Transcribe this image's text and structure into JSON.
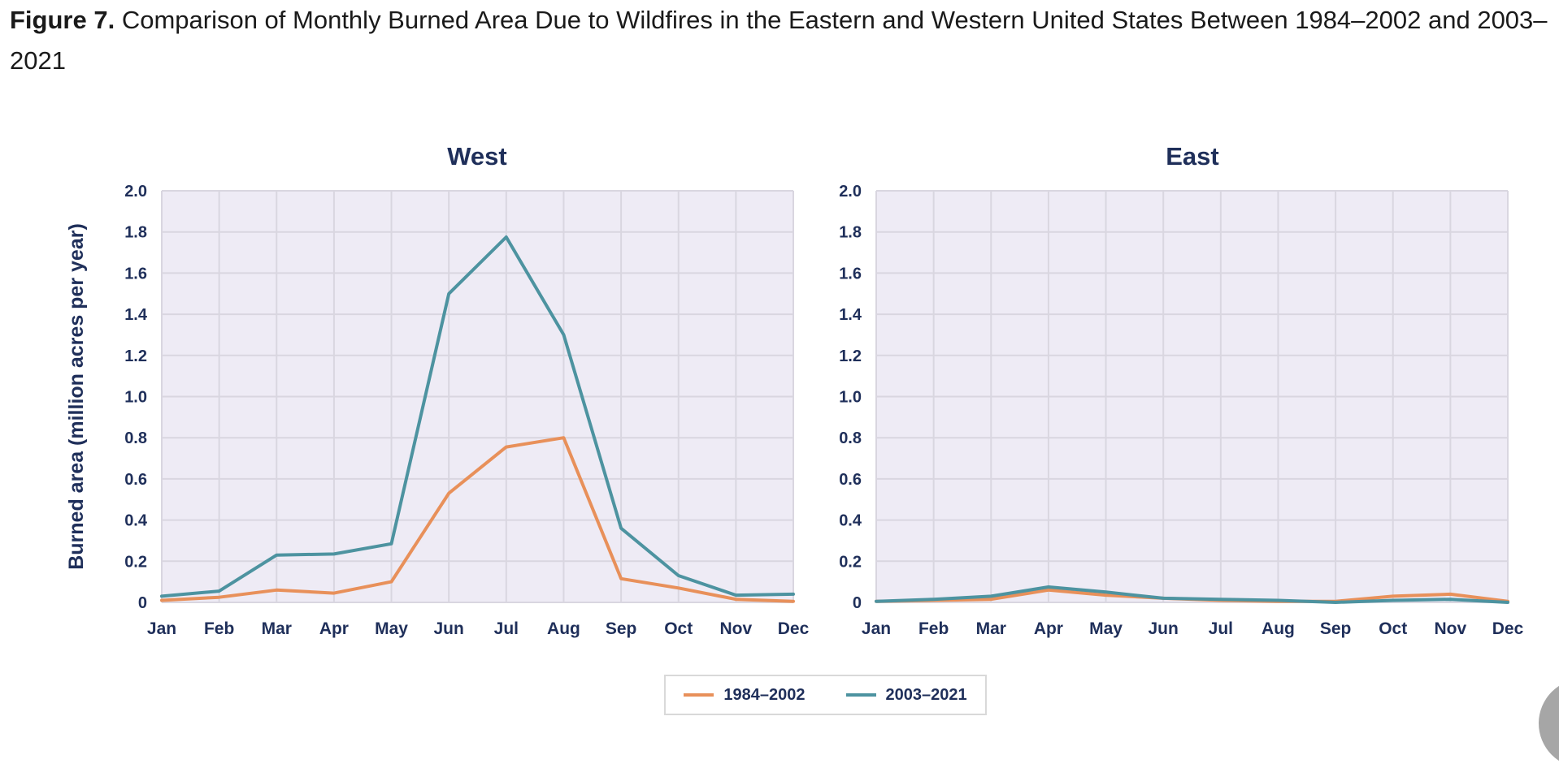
{
  "caption": {
    "label": "Figure 7.",
    "text": " Comparison of Monthly Burned Area Due to Wildfires in the Eastern and Western United States Between 1984–2002 and 2003–2021"
  },
  "colors": {
    "series_1984_2002": "#e8905a",
    "series_2003_2021": "#4d93a0",
    "plot_background": "#eeebf5",
    "grid": "#d9d6e0",
    "text": "#1f2f5a"
  },
  "legend": {
    "items": [
      {
        "label": "1984–2002",
        "color": "#e8905a"
      },
      {
        "label": "2003–2021",
        "color": "#4d93a0"
      }
    ]
  },
  "chart_data": [
    {
      "type": "line",
      "title": "West",
      "xlabel": "",
      "ylabel": "Burned area (million acres per year)",
      "categories": [
        "Jan",
        "Feb",
        "Mar",
        "Apr",
        "May",
        "Jun",
        "Jul",
        "Aug",
        "Sep",
        "Oct",
        "Nov",
        "Dec"
      ],
      "ylim": [
        0,
        2.0
      ],
      "yticks": [
        "0",
        "0.2",
        "0.4",
        "0.6",
        "0.8",
        "1.0",
        "1.2",
        "1.4",
        "1.6",
        "1.8",
        "2.0"
      ],
      "grid": true,
      "series": [
        {
          "name": "1984–2002",
          "color": "#e8905a",
          "values": [
            0.01,
            0.025,
            0.06,
            0.045,
            0.1,
            0.53,
            0.755,
            0.8,
            0.115,
            0.07,
            0.015,
            0.005
          ]
        },
        {
          "name": "2003–2021",
          "color": "#4d93a0",
          "values": [
            0.03,
            0.055,
            0.23,
            0.235,
            0.285,
            1.5,
            1.775,
            1.3,
            0.36,
            0.13,
            0.035,
            0.04
          ]
        }
      ]
    },
    {
      "type": "line",
      "title": "East",
      "xlabel": "",
      "ylabel": "",
      "categories": [
        "Jan",
        "Feb",
        "Mar",
        "Apr",
        "May",
        "Jun",
        "Jul",
        "Aug",
        "Sep",
        "Oct",
        "Nov",
        "Dec"
      ],
      "ylim": [
        0,
        2.0
      ],
      "yticks": [
        "0",
        "0.2",
        "0.4",
        "0.6",
        "0.8",
        "1.0",
        "1.2",
        "1.4",
        "1.6",
        "1.8",
        "2.0"
      ],
      "grid": true,
      "series": [
        {
          "name": "1984–2002",
          "color": "#e8905a",
          "values": [
            0.005,
            0.01,
            0.015,
            0.06,
            0.035,
            0.02,
            0.01,
            0.005,
            0.005,
            0.03,
            0.04,
            0.005
          ]
        },
        {
          "name": "2003–2021",
          "color": "#4d93a0",
          "values": [
            0.005,
            0.015,
            0.03,
            0.075,
            0.05,
            0.02,
            0.015,
            0.01,
            0.0,
            0.01,
            0.015,
            0.0
          ]
        }
      ]
    }
  ]
}
